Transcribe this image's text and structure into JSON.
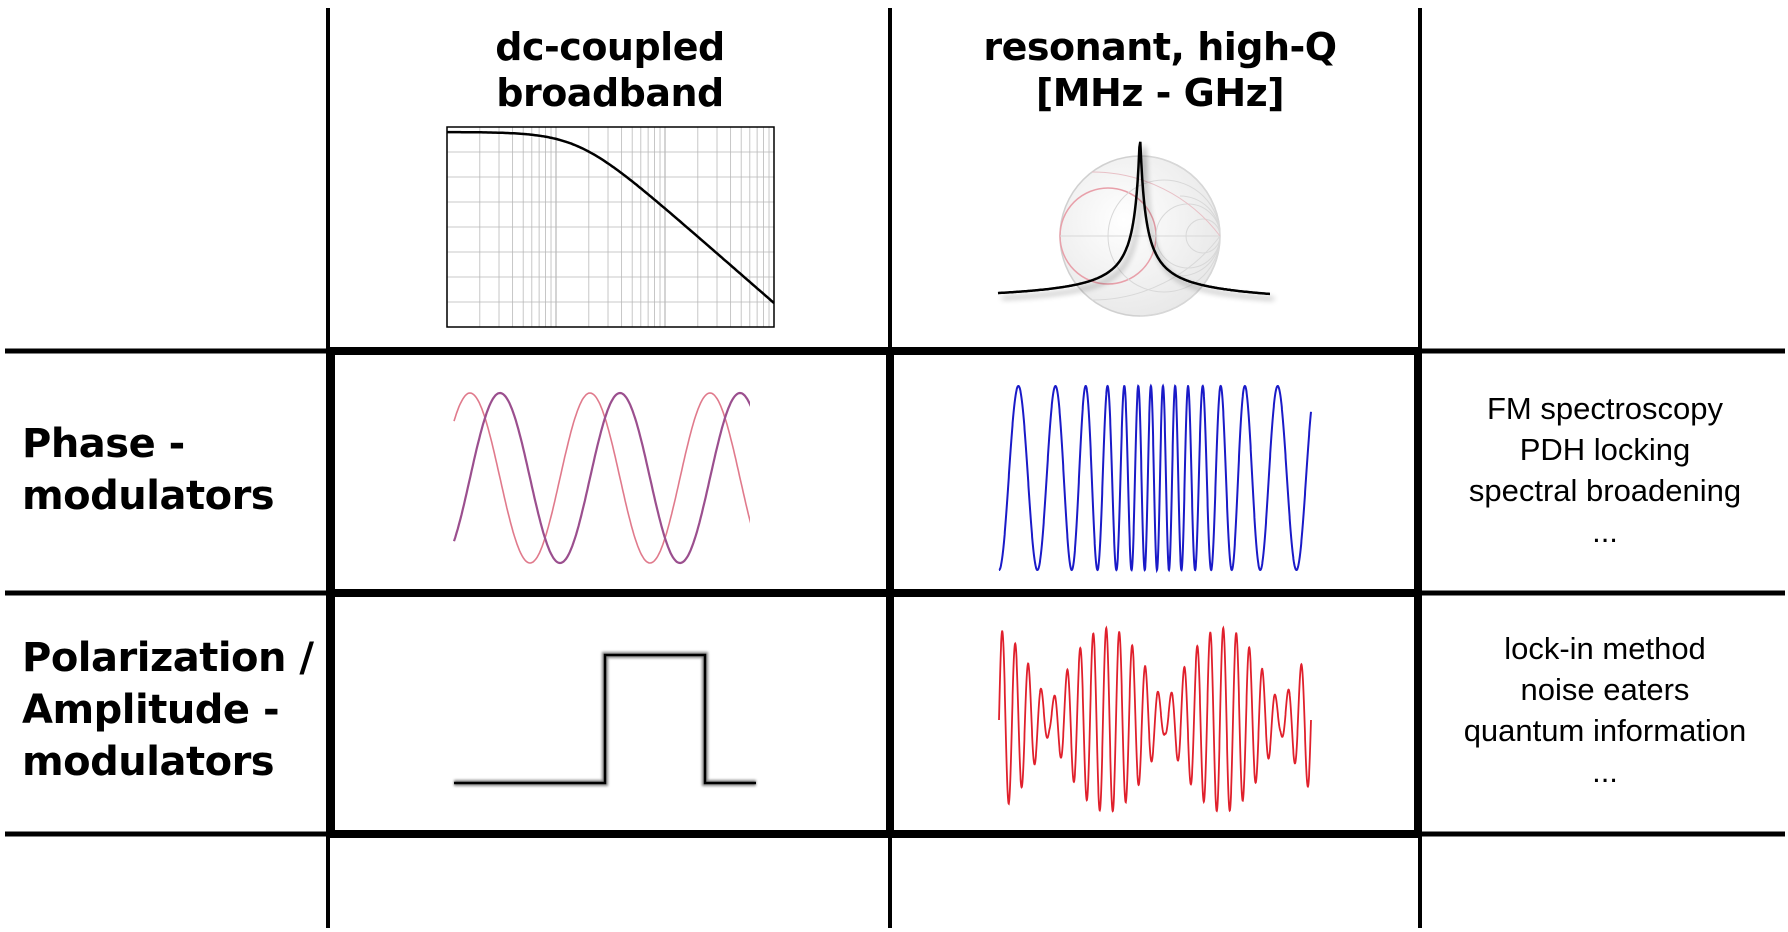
{
  "columns": [
    {
      "lines": [
        "dc-coupled",
        "broadband"
      ]
    },
    {
      "lines": [
        "resonant, high-Q",
        "[MHz - GHz]"
      ]
    }
  ],
  "rows": [
    {
      "label_lines": [
        "Phase -",
        "modulators"
      ],
      "applications": [
        "FM spectroscopy",
        "PDH locking",
        "spectral broadening",
        "..."
      ]
    },
    {
      "label_lines": [
        "Polarization /",
        "Amplitude -",
        "modulators"
      ],
      "applications": [
        "lock-in method",
        "noise eaters",
        "quantum information",
        "..."
      ]
    }
  ],
  "colors": {
    "grid_line": "#000000",
    "phase_wave_light": "#e07a8c",
    "phase_wave_dark": "#9b4f8e",
    "fm_wave": "#1a1ac8",
    "am_wave": "#e0202c",
    "lowpass_curve": "#000000",
    "smith_chart": "#d8d8d8",
    "smith_chart_accent": "#e8a0aa",
    "plot_grid": "#b0b0b0"
  }
}
